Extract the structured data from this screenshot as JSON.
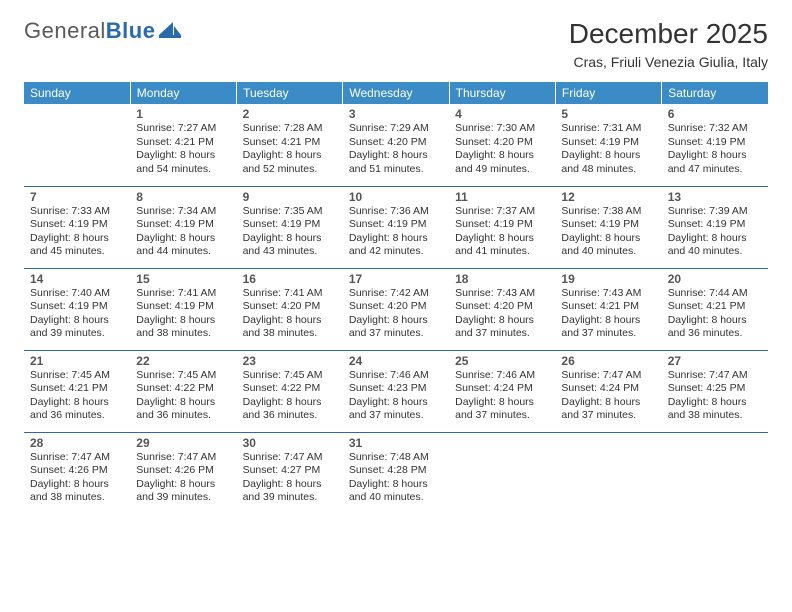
{
  "logo": {
    "part1": "General",
    "part2": "Blue"
  },
  "header": {
    "month_title": "December 2025",
    "location": "Cras, Friuli Venezia Giulia, Italy"
  },
  "colors": {
    "header_bg": "#3b8bc7",
    "header_text": "#ffffff",
    "accent": "#2a6bb0",
    "body_text": "#333333",
    "daynum": "#555555",
    "page_bg": "#ffffff"
  },
  "typography": {
    "month_title_fontsize": 28,
    "location_fontsize": 14,
    "weekday_fontsize": 12,
    "daynum_fontsize": 12,
    "cell_fontsize": 10.5
  },
  "weekdays": [
    "Sunday",
    "Monday",
    "Tuesday",
    "Wednesday",
    "Thursday",
    "Friday",
    "Saturday"
  ],
  "weeks": [
    [
      null,
      {
        "day": "1",
        "sunrise": "Sunrise: 7:27 AM",
        "sunset": "Sunset: 4:21 PM",
        "daylight": "Daylight: 8 hours and 54 minutes."
      },
      {
        "day": "2",
        "sunrise": "Sunrise: 7:28 AM",
        "sunset": "Sunset: 4:21 PM",
        "daylight": "Daylight: 8 hours and 52 minutes."
      },
      {
        "day": "3",
        "sunrise": "Sunrise: 7:29 AM",
        "sunset": "Sunset: 4:20 PM",
        "daylight": "Daylight: 8 hours and 51 minutes."
      },
      {
        "day": "4",
        "sunrise": "Sunrise: 7:30 AM",
        "sunset": "Sunset: 4:20 PM",
        "daylight": "Daylight: 8 hours and 49 minutes."
      },
      {
        "day": "5",
        "sunrise": "Sunrise: 7:31 AM",
        "sunset": "Sunset: 4:19 PM",
        "daylight": "Daylight: 8 hours and 48 minutes."
      },
      {
        "day": "6",
        "sunrise": "Sunrise: 7:32 AM",
        "sunset": "Sunset: 4:19 PM",
        "daylight": "Daylight: 8 hours and 47 minutes."
      }
    ],
    [
      {
        "day": "7",
        "sunrise": "Sunrise: 7:33 AM",
        "sunset": "Sunset: 4:19 PM",
        "daylight": "Daylight: 8 hours and 45 minutes."
      },
      {
        "day": "8",
        "sunrise": "Sunrise: 7:34 AM",
        "sunset": "Sunset: 4:19 PM",
        "daylight": "Daylight: 8 hours and 44 minutes."
      },
      {
        "day": "9",
        "sunrise": "Sunrise: 7:35 AM",
        "sunset": "Sunset: 4:19 PM",
        "daylight": "Daylight: 8 hours and 43 minutes."
      },
      {
        "day": "10",
        "sunrise": "Sunrise: 7:36 AM",
        "sunset": "Sunset: 4:19 PM",
        "daylight": "Daylight: 8 hours and 42 minutes."
      },
      {
        "day": "11",
        "sunrise": "Sunrise: 7:37 AM",
        "sunset": "Sunset: 4:19 PM",
        "daylight": "Daylight: 8 hours and 41 minutes."
      },
      {
        "day": "12",
        "sunrise": "Sunrise: 7:38 AM",
        "sunset": "Sunset: 4:19 PM",
        "daylight": "Daylight: 8 hours and 40 minutes."
      },
      {
        "day": "13",
        "sunrise": "Sunrise: 7:39 AM",
        "sunset": "Sunset: 4:19 PM",
        "daylight": "Daylight: 8 hours and 40 minutes."
      }
    ],
    [
      {
        "day": "14",
        "sunrise": "Sunrise: 7:40 AM",
        "sunset": "Sunset: 4:19 PM",
        "daylight": "Daylight: 8 hours and 39 minutes."
      },
      {
        "day": "15",
        "sunrise": "Sunrise: 7:41 AM",
        "sunset": "Sunset: 4:19 PM",
        "daylight": "Daylight: 8 hours and 38 minutes."
      },
      {
        "day": "16",
        "sunrise": "Sunrise: 7:41 AM",
        "sunset": "Sunset: 4:20 PM",
        "daylight": "Daylight: 8 hours and 38 minutes."
      },
      {
        "day": "17",
        "sunrise": "Sunrise: 7:42 AM",
        "sunset": "Sunset: 4:20 PM",
        "daylight": "Daylight: 8 hours and 37 minutes."
      },
      {
        "day": "18",
        "sunrise": "Sunrise: 7:43 AM",
        "sunset": "Sunset: 4:20 PM",
        "daylight": "Daylight: 8 hours and 37 minutes."
      },
      {
        "day": "19",
        "sunrise": "Sunrise: 7:43 AM",
        "sunset": "Sunset: 4:21 PM",
        "daylight": "Daylight: 8 hours and 37 minutes."
      },
      {
        "day": "20",
        "sunrise": "Sunrise: 7:44 AM",
        "sunset": "Sunset: 4:21 PM",
        "daylight": "Daylight: 8 hours and 36 minutes."
      }
    ],
    [
      {
        "day": "21",
        "sunrise": "Sunrise: 7:45 AM",
        "sunset": "Sunset: 4:21 PM",
        "daylight": "Daylight: 8 hours and 36 minutes."
      },
      {
        "day": "22",
        "sunrise": "Sunrise: 7:45 AM",
        "sunset": "Sunset: 4:22 PM",
        "daylight": "Daylight: 8 hours and 36 minutes."
      },
      {
        "day": "23",
        "sunrise": "Sunrise: 7:45 AM",
        "sunset": "Sunset: 4:22 PM",
        "daylight": "Daylight: 8 hours and 36 minutes."
      },
      {
        "day": "24",
        "sunrise": "Sunrise: 7:46 AM",
        "sunset": "Sunset: 4:23 PM",
        "daylight": "Daylight: 8 hours and 37 minutes."
      },
      {
        "day": "25",
        "sunrise": "Sunrise: 7:46 AM",
        "sunset": "Sunset: 4:24 PM",
        "daylight": "Daylight: 8 hours and 37 minutes."
      },
      {
        "day": "26",
        "sunrise": "Sunrise: 7:47 AM",
        "sunset": "Sunset: 4:24 PM",
        "daylight": "Daylight: 8 hours and 37 minutes."
      },
      {
        "day": "27",
        "sunrise": "Sunrise: 7:47 AM",
        "sunset": "Sunset: 4:25 PM",
        "daylight": "Daylight: 8 hours and 38 minutes."
      }
    ],
    [
      {
        "day": "28",
        "sunrise": "Sunrise: 7:47 AM",
        "sunset": "Sunset: 4:26 PM",
        "daylight": "Daylight: 8 hours and 38 minutes."
      },
      {
        "day": "29",
        "sunrise": "Sunrise: 7:47 AM",
        "sunset": "Sunset: 4:26 PM",
        "daylight": "Daylight: 8 hours and 39 minutes."
      },
      {
        "day": "30",
        "sunrise": "Sunrise: 7:47 AM",
        "sunset": "Sunset: 4:27 PM",
        "daylight": "Daylight: 8 hours and 39 minutes."
      },
      {
        "day": "31",
        "sunrise": "Sunrise: 7:48 AM",
        "sunset": "Sunset: 4:28 PM",
        "daylight": "Daylight: 8 hours and 40 minutes."
      },
      null,
      null,
      null
    ]
  ]
}
